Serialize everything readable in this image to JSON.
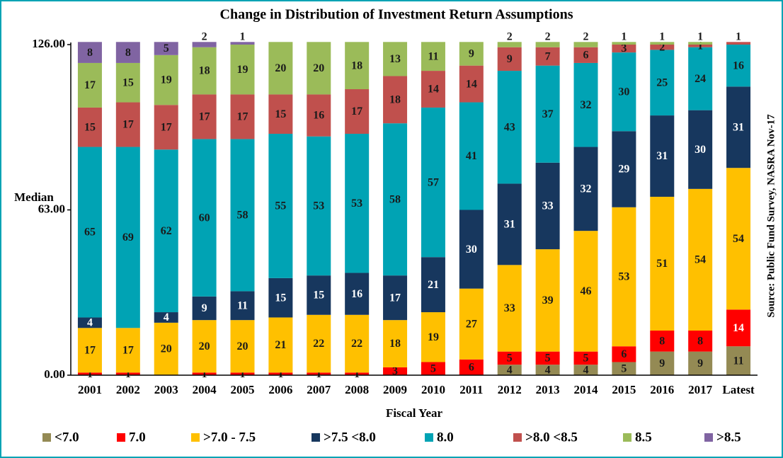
{
  "chart_data": {
    "type": "stacked_bar",
    "title": "Change in Distribution of Investment Return Assumptions",
    "x_label": "Fiscal Year",
    "annotations": [
      "Median",
      "Source: Public Fund Survey, NASRA Nov-17"
    ],
    "categories": [
      "2001",
      "2002",
      "2003",
      "2004",
      "2005",
      "2006",
      "2007",
      "2008",
      "2009",
      "2010",
      "2011",
      "2012",
      "2013",
      "2014",
      "2015",
      "2016",
      "2017",
      "Latest"
    ],
    "series": [
      {
        "name": "<7.0",
        "color": "#948a54",
        "values": [
          0,
          0,
          0,
          0,
          0,
          0,
          0,
          0,
          0,
          0,
          0,
          4,
          4,
          4,
          5,
          9,
          9,
          11
        ]
      },
      {
        "name": "7.0",
        "color": "#ff0000",
        "values": [
          1,
          1,
          0,
          1,
          1,
          1,
          1,
          1,
          3,
          5,
          6,
          5,
          5,
          5,
          6,
          8,
          8,
          14
        ]
      },
      {
        "name": ">7.0 - 7.5",
        "color": "#ffc000",
        "values": [
          17,
          17,
          20,
          20,
          20,
          21,
          22,
          22,
          18,
          19,
          27,
          33,
          39,
          46,
          53,
          51,
          54,
          54
        ]
      },
      {
        "name": ">7.5 <8.0",
        "color": "#17375e",
        "values": [
          4,
          0,
          4,
          9,
          11,
          15,
          15,
          16,
          17,
          21,
          30,
          31,
          33,
          32,
          29,
          31,
          30,
          31
        ]
      },
      {
        "name": "8.0",
        "color": "#00a3b4",
        "values": [
          65,
          69,
          62,
          60,
          58,
          55,
          53,
          53,
          58,
          57,
          41,
          43,
          37,
          32,
          30,
          25,
          24,
          16
        ]
      },
      {
        "name": ">8.0 <8.5",
        "color": "#c0504d",
        "values": [
          15,
          17,
          17,
          17,
          17,
          15,
          16,
          17,
          18,
          14,
          14,
          9,
          7,
          6,
          3,
          2,
          1,
          1
        ]
      },
      {
        "name": "8.5",
        "color": "#9bbb59",
        "values": [
          17,
          15,
          19,
          18,
          19,
          20,
          20,
          18,
          13,
          11,
          9,
          2,
          2,
          2,
          1,
          1,
          1,
          0
        ]
      },
      {
        "name": ">8.5",
        "color": "#8064a2",
        "values": [
          8,
          8,
          5,
          2,
          1,
          0,
          0,
          0,
          0,
          0,
          0,
          0,
          0,
          0,
          0,
          0,
          0,
          0
        ]
      }
    ],
    "ylim": [
      0,
      126
    ],
    "yticks": [
      {
        "value": 0,
        "label": "0.00"
      },
      {
        "value": 63,
        "label": "63.00"
      },
      {
        "value": 126,
        "label": "126.00"
      }
    ],
    "legend": "bottom"
  }
}
